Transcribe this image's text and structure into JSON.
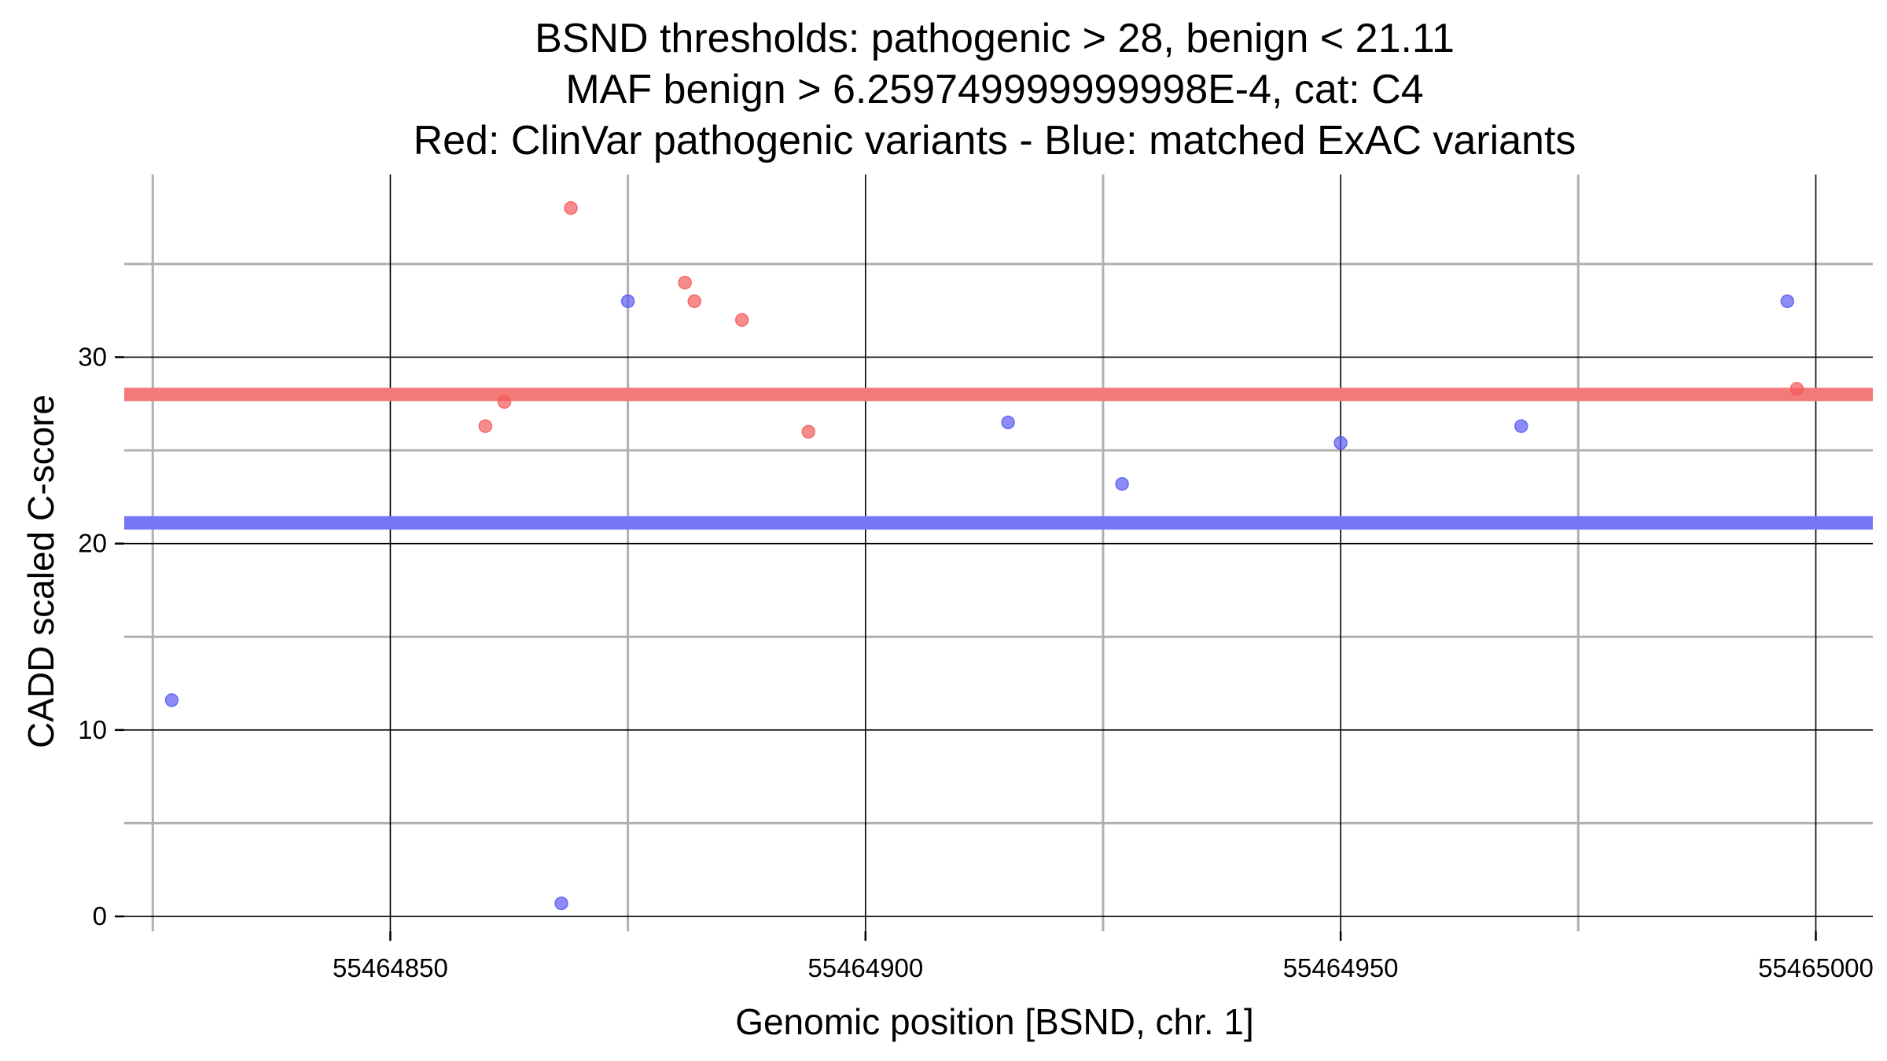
{
  "chart_data": {
    "type": "scatter",
    "title": [
      "BSND thresholds: pathogenic > 28, benign < 21.11",
      "MAF benign > 6.259749999999998E-4, cat: C4",
      "Red: ClinVar pathogenic variants - Blue: matched ExAC variants"
    ],
    "xlabel": "Genomic position [BSND, chr. 1]",
    "ylabel": "CADD scaled C-score",
    "xlim": [
      55464822,
      55465006
    ],
    "ylim": [
      -0.8,
      39.8
    ],
    "x_ticks": [
      55464850,
      55464900,
      55464950,
      55465000
    ],
    "x_tick_labels": [
      "55464850",
      "55464900",
      "55464950",
      "55465000"
    ],
    "x_minor_gridlines": [
      55464825,
      55464875,
      55464925,
      55464975
    ],
    "y_ticks": [
      0,
      10,
      20,
      30
    ],
    "y_tick_labels": [
      "0",
      "10",
      "20",
      "30"
    ],
    "y_minor_gridlines": [
      5,
      15,
      25,
      35
    ],
    "grid": true,
    "thresholds": [
      {
        "value": 28,
        "color": "#f47a7a"
      },
      {
        "value": 21.11,
        "color": "#7777f5"
      }
    ],
    "series": [
      {
        "color": "#f45b5b",
        "points": [
          {
            "x": 55464869,
            "y": 38
          },
          {
            "x": 55464881,
            "y": 34
          },
          {
            "x": 55464882,
            "y": 33
          },
          {
            "x": 55464887,
            "y": 32
          },
          {
            "x": 55464862,
            "y": 27.6
          },
          {
            "x": 55464860,
            "y": 26.3
          },
          {
            "x": 55464894,
            "y": 26
          },
          {
            "x": 55464998,
            "y": 28.3
          }
        ]
      },
      {
        "color": "#5b5bf4",
        "points": [
          {
            "x": 55464827,
            "y": 11.6
          },
          {
            "x": 55464868,
            "y": 0.7
          },
          {
            "x": 55464875,
            "y": 33
          },
          {
            "x": 55464915,
            "y": 26.5
          },
          {
            "x": 55464927,
            "y": 23.2
          },
          {
            "x": 55464950,
            "y": 25.4
          },
          {
            "x": 55464969,
            "y": 26.3
          },
          {
            "x": 55464997,
            "y": 33
          }
        ]
      }
    ]
  }
}
